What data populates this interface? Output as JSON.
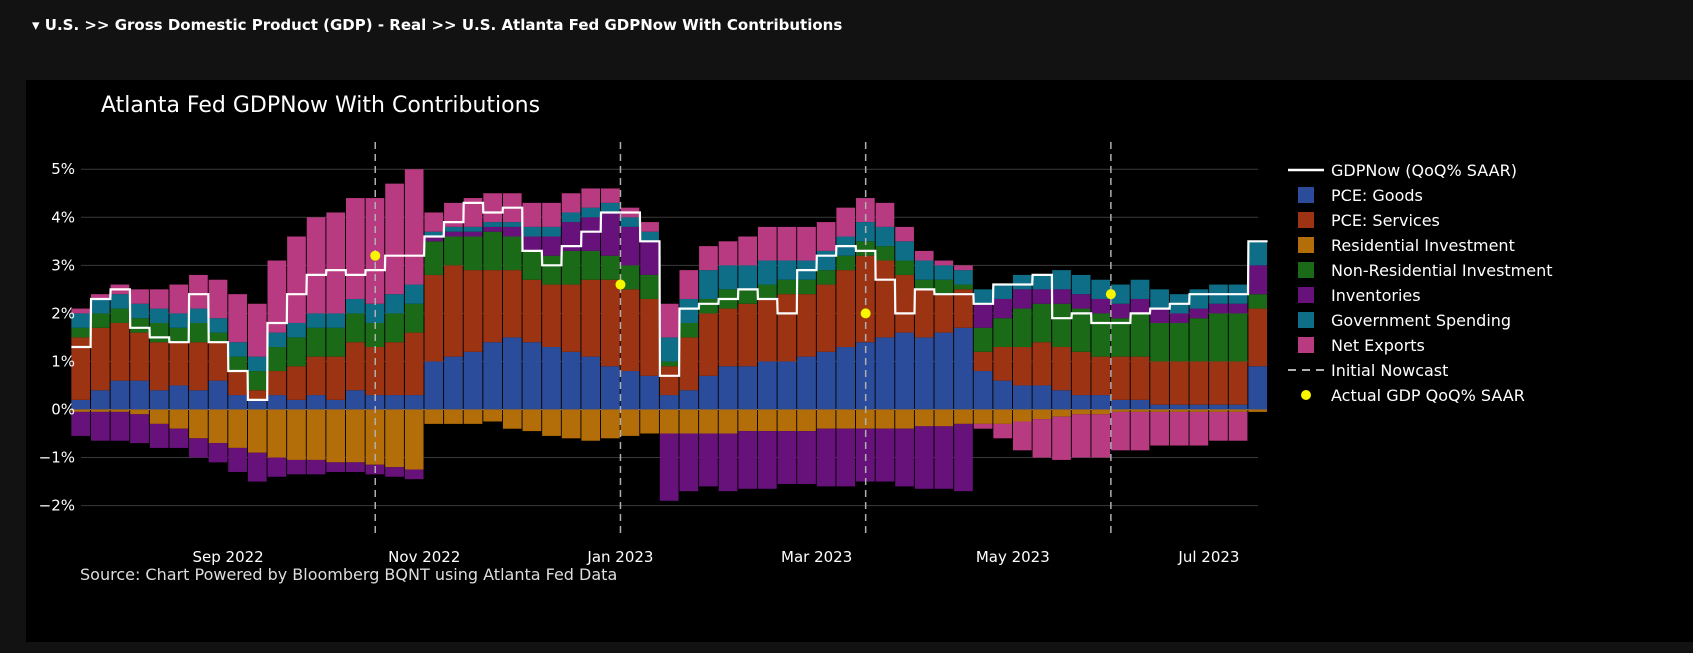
{
  "breadcrumb": {
    "caret": "▾",
    "text": "U.S. >> Gross Domestic Product (GDP) - Real >> U.S. Atlanta Fed GDPNow With Contributions"
  },
  "colors": {
    "page_bg": "#121212",
    "panel_bg": "#000000",
    "text": "#ffffff",
    "gridline": "#3a3a3a",
    "zero_line": "#888888",
    "initial_nowcast": "#b0b0b0",
    "actual_marker": "#f7f700"
  },
  "chart_data": {
    "type": "bar",
    "stacked": true,
    "title": "Atlanta Fed GDPNow With Contributions",
    "source": "Source: Chart Powered by Bloomberg BQNT using Atlanta Fed Data",
    "xlabel": "",
    "ylabel": "",
    "xlim": [
      0,
      12
    ],
    "ylim": [
      -2.3,
      5.4
    ],
    "yticks": [
      5,
      4,
      3,
      2,
      1,
      0,
      -1,
      -2
    ],
    "ytick_labels": [
      "5%",
      "4%",
      "3%",
      "2%",
      "1%",
      "0%",
      "−1%",
      "−2%"
    ],
    "xticks": [
      1.5,
      3.5,
      5.5,
      7.5,
      9.5,
      11.5
    ],
    "xtick_labels": [
      "Sep 2022",
      "Nov 2022",
      "Jan 2023",
      "Mar 2023",
      "May 2023",
      "Jul 2023"
    ],
    "x": [
      0.0,
      0.2,
      0.4,
      0.6,
      0.8,
      1.0,
      1.2,
      1.4,
      1.6,
      1.8,
      2.0,
      2.2,
      2.4,
      2.6,
      2.8,
      3.0,
      3.2,
      3.4,
      3.6,
      3.8,
      4.0,
      4.2,
      4.4,
      4.6,
      4.8,
      5.0,
      5.2,
      5.4,
      5.6,
      5.8,
      6.0,
      6.2,
      6.4,
      6.6,
      6.8,
      7.0,
      7.2,
      7.4,
      7.6,
      7.8,
      8.0,
      8.2,
      8.4,
      8.6,
      8.8,
      9.0,
      9.2,
      9.4,
      9.6,
      9.8,
      10.0,
      10.2,
      10.4,
      10.6,
      10.8,
      11.0,
      11.2,
      11.4,
      11.6,
      11.8,
      12.0
    ],
    "series": [
      {
        "name": "PCE: Goods",
        "color": "#2b4c9b",
        "values": [
          0.2,
          0.4,
          0.6,
          0.6,
          0.4,
          0.5,
          0.4,
          0.6,
          0.3,
          0.2,
          0.3,
          0.2,
          0.3,
          0.2,
          0.4,
          0.3,
          0.3,
          0.3,
          1.0,
          1.1,
          1.2,
          1.4,
          1.5,
          1.4,
          1.3,
          1.2,
          1.1,
          0.9,
          0.8,
          0.7,
          0.3,
          0.4,
          0.7,
          0.9,
          0.9,
          1.0,
          1.0,
          1.1,
          1.2,
          1.3,
          1.4,
          1.5,
          1.6,
          1.5,
          1.6,
          1.7,
          0.8,
          0.6,
          0.5,
          0.5,
          0.4,
          0.3,
          0.3,
          0.2,
          0.2,
          0.1,
          0.1,
          0.1,
          0.1,
          0.1,
          0.9
        ]
      },
      {
        "name": "PCE: Services",
        "color": "#9c3312",
        "values": [
          1.3,
          1.3,
          1.2,
          1.0,
          1.0,
          0.9,
          1.0,
          0.8,
          0.5,
          0.2,
          0.5,
          0.7,
          0.8,
          0.9,
          1.0,
          1.0,
          1.1,
          1.3,
          1.8,
          1.9,
          1.7,
          1.5,
          1.4,
          1.3,
          1.3,
          1.4,
          1.6,
          1.8,
          1.7,
          1.6,
          0.6,
          1.1,
          1.3,
          1.2,
          1.3,
          1.3,
          1.4,
          1.3,
          1.4,
          1.6,
          1.8,
          1.6,
          1.2,
          1.0,
          0.8,
          0.8,
          0.4,
          0.7,
          0.8,
          0.9,
          0.9,
          0.9,
          0.8,
          0.9,
          0.9,
          0.9,
          0.9,
          0.9,
          0.9,
          0.9,
          1.2
        ]
      },
      {
        "name": "Residential Investment",
        "color": "#b36e09",
        "values": [
          -0.05,
          -0.05,
          -0.05,
          -0.1,
          -0.3,
          -0.4,
          -0.6,
          -0.7,
          -0.8,
          -0.9,
          -1.0,
          -1.05,
          -1.05,
          -1.1,
          -1.1,
          -1.15,
          -1.2,
          -1.25,
          -0.3,
          -0.3,
          -0.3,
          -0.25,
          -0.4,
          -0.45,
          -0.55,
          -0.6,
          -0.65,
          -0.6,
          -0.55,
          -0.5,
          -0.5,
          -0.5,
          -0.5,
          -0.5,
          -0.45,
          -0.45,
          -0.45,
          -0.45,
          -0.4,
          -0.4,
          -0.4,
          -0.4,
          -0.4,
          -0.35,
          -0.35,
          -0.3,
          -0.3,
          -0.3,
          -0.25,
          -0.2,
          -0.15,
          -0.1,
          -0.1,
          -0.05,
          -0.05,
          -0.05,
          -0.05,
          -0.05,
          -0.05,
          -0.05,
          -0.05
        ]
      },
      {
        "name": "Non-Residential Investment",
        "color": "#1a6a18",
        "values": [
          0.2,
          0.3,
          0.3,
          0.3,
          0.4,
          0.3,
          0.4,
          0.2,
          0.3,
          0.4,
          0.5,
          0.6,
          0.6,
          0.6,
          0.6,
          0.5,
          0.6,
          0.6,
          0.7,
          0.6,
          0.7,
          0.8,
          0.7,
          0.6,
          0.6,
          0.7,
          0.6,
          0.5,
          0.5,
          0.5,
          0.1,
          0.3,
          0.3,
          0.4,
          0.3,
          0.3,
          0.3,
          0.3,
          0.3,
          0.3,
          0.3,
          0.3,
          0.3,
          0.2,
          0.3,
          0.1,
          0.5,
          0.6,
          0.8,
          0.8,
          0.9,
          0.9,
          0.9,
          0.8,
          0.9,
          0.8,
          0.8,
          0.9,
          1.0,
          1.0,
          0.3
        ]
      },
      {
        "name": "Inventories",
        "color": "#67127a",
        "values": [
          -0.5,
          -0.6,
          -0.6,
          -0.6,
          -0.5,
          -0.4,
          -0.4,
          -0.4,
          -0.5,
          -0.6,
          -0.4,
          -0.3,
          -0.3,
          -0.2,
          -0.2,
          -0.2,
          -0.2,
          -0.2,
          0.1,
          0.1,
          0.1,
          0.1,
          0.2,
          0.3,
          0.4,
          0.6,
          0.7,
          0.9,
          0.8,
          0.7,
          -1.4,
          -1.2,
          -1.1,
          -1.2,
          -1.2,
          -1.2,
          -1.1,
          -1.1,
          -1.2,
          -1.2,
          -1.1,
          -1.1,
          -1.2,
          -1.3,
          -1.3,
          -1.4,
          0.5,
          0.4,
          0.4,
          0.3,
          0.3,
          0.3,
          0.3,
          0.3,
          0.3,
          0.3,
          0.2,
          0.2,
          0.2,
          0.2,
          0.6
        ]
      },
      {
        "name": "Government Spending",
        "color": "#0e6e87",
        "values": [
          0.3,
          0.3,
          0.3,
          0.3,
          0.3,
          0.3,
          0.3,
          0.3,
          0.3,
          0.3,
          0.3,
          0.3,
          0.3,
          0.3,
          0.3,
          0.4,
          0.4,
          0.4,
          0.1,
          0.1,
          0.1,
          0.1,
          0.1,
          0.2,
          0.2,
          0.2,
          0.2,
          0.2,
          0.2,
          0.2,
          0.5,
          0.5,
          0.6,
          0.5,
          0.5,
          0.5,
          0.4,
          0.4,
          0.4,
          0.4,
          0.4,
          0.4,
          0.4,
          0.4,
          0.3,
          0.3,
          0.3,
          0.3,
          0.3,
          0.3,
          0.4,
          0.4,
          0.4,
          0.4,
          0.4,
          0.4,
          0.4,
          0.4,
          0.4,
          0.4,
          0.5
        ]
      },
      {
        "name": "Net Exports",
        "color": "#b83a80",
        "values": [
          0.1,
          0.1,
          0.2,
          0.3,
          0.4,
          0.6,
          0.7,
          0.8,
          1.0,
          1.1,
          1.5,
          1.8,
          2.0,
          2.1,
          2.1,
          2.2,
          2.3,
          2.4,
          0.4,
          0.5,
          0.6,
          0.6,
          0.6,
          0.5,
          0.5,
          0.4,
          0.4,
          0.3,
          0.2,
          0.2,
          0.7,
          0.6,
          0.5,
          0.5,
          0.6,
          0.7,
          0.7,
          0.7,
          0.6,
          0.6,
          0.5,
          0.5,
          0.3,
          0.2,
          0.1,
          0.1,
          -0.1,
          -0.3,
          -0.6,
          -0.8,
          -0.9,
          -0.9,
          -0.9,
          -0.8,
          -0.8,
          -0.7,
          -0.7,
          -0.7,
          -0.6,
          -0.6,
          0.0
        ]
      }
    ],
    "gdpnow": {
      "name": "GDPNow (QoQ% SAAR)",
      "color": "#ffffff",
      "values": [
        1.3,
        2.3,
        2.5,
        1.7,
        1.5,
        1.4,
        2.4,
        1.4,
        0.8,
        0.2,
        1.8,
        2.4,
        2.8,
        2.9,
        2.8,
        2.9,
        3.2,
        3.2,
        3.6,
        3.9,
        4.3,
        4.1,
        4.2,
        3.3,
        3.0,
        3.4,
        3.7,
        4.1,
        4.1,
        3.5,
        0.7,
        2.1,
        2.2,
        2.3,
        2.5,
        2.3,
        2.0,
        2.9,
        3.2,
        3.4,
        3.3,
        2.7,
        2.0,
        2.5,
        2.4,
        2.4,
        2.2,
        2.6,
        2.6,
        2.8,
        1.9,
        2.0,
        1.8,
        1.8,
        2.0,
        2.1,
        2.2,
        2.4,
        2.4,
        2.4,
        3.5
      ]
    },
    "initial_nowcast": {
      "name": "Initial Nowcast",
      "x": [
        3.0,
        5.5,
        8.0,
        10.5
      ]
    },
    "actual_gdp": {
      "name": "Actual GDP QoQ% SAAR",
      "x": [
        3.0,
        5.5,
        8.0,
        10.5
      ],
      "values": [
        3.2,
        2.6,
        2.0,
        2.4
      ]
    },
    "legend": {
      "placement": "right"
    }
  }
}
